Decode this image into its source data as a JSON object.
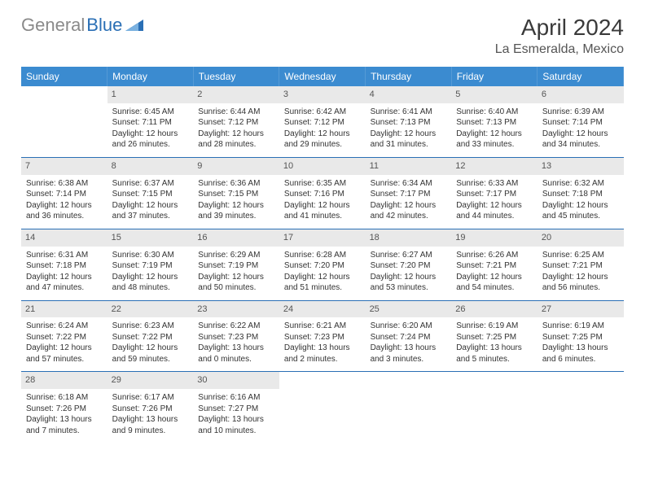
{
  "brand": {
    "part1": "General",
    "part2": "Blue"
  },
  "title": "April 2024",
  "location": "La Esmeralda, Mexico",
  "colors": {
    "header_bg": "#3b8bd0",
    "header_text": "#ffffff",
    "border": "#2a6fb5",
    "daynum_bg": "#e9e9e9",
    "logo_gray": "#8a8a8a",
    "logo_blue": "#2a6fb5"
  },
  "weekdays": [
    "Sunday",
    "Monday",
    "Tuesday",
    "Wednesday",
    "Thursday",
    "Friday",
    "Saturday"
  ],
  "weeks": [
    [
      {
        "day": "",
        "sunrise": "",
        "sunset": "",
        "daylight": ""
      },
      {
        "day": "1",
        "sunrise": "Sunrise: 6:45 AM",
        "sunset": "Sunset: 7:11 PM",
        "daylight": "Daylight: 12 hours and 26 minutes."
      },
      {
        "day": "2",
        "sunrise": "Sunrise: 6:44 AM",
        "sunset": "Sunset: 7:12 PM",
        "daylight": "Daylight: 12 hours and 28 minutes."
      },
      {
        "day": "3",
        "sunrise": "Sunrise: 6:42 AM",
        "sunset": "Sunset: 7:12 PM",
        "daylight": "Daylight: 12 hours and 29 minutes."
      },
      {
        "day": "4",
        "sunrise": "Sunrise: 6:41 AM",
        "sunset": "Sunset: 7:13 PM",
        "daylight": "Daylight: 12 hours and 31 minutes."
      },
      {
        "day": "5",
        "sunrise": "Sunrise: 6:40 AM",
        "sunset": "Sunset: 7:13 PM",
        "daylight": "Daylight: 12 hours and 33 minutes."
      },
      {
        "day": "6",
        "sunrise": "Sunrise: 6:39 AM",
        "sunset": "Sunset: 7:14 PM",
        "daylight": "Daylight: 12 hours and 34 minutes."
      }
    ],
    [
      {
        "day": "7",
        "sunrise": "Sunrise: 6:38 AM",
        "sunset": "Sunset: 7:14 PM",
        "daylight": "Daylight: 12 hours and 36 minutes."
      },
      {
        "day": "8",
        "sunrise": "Sunrise: 6:37 AM",
        "sunset": "Sunset: 7:15 PM",
        "daylight": "Daylight: 12 hours and 37 minutes."
      },
      {
        "day": "9",
        "sunrise": "Sunrise: 6:36 AM",
        "sunset": "Sunset: 7:15 PM",
        "daylight": "Daylight: 12 hours and 39 minutes."
      },
      {
        "day": "10",
        "sunrise": "Sunrise: 6:35 AM",
        "sunset": "Sunset: 7:16 PM",
        "daylight": "Daylight: 12 hours and 41 minutes."
      },
      {
        "day": "11",
        "sunrise": "Sunrise: 6:34 AM",
        "sunset": "Sunset: 7:17 PM",
        "daylight": "Daylight: 12 hours and 42 minutes."
      },
      {
        "day": "12",
        "sunrise": "Sunrise: 6:33 AM",
        "sunset": "Sunset: 7:17 PM",
        "daylight": "Daylight: 12 hours and 44 minutes."
      },
      {
        "day": "13",
        "sunrise": "Sunrise: 6:32 AM",
        "sunset": "Sunset: 7:18 PM",
        "daylight": "Daylight: 12 hours and 45 minutes."
      }
    ],
    [
      {
        "day": "14",
        "sunrise": "Sunrise: 6:31 AM",
        "sunset": "Sunset: 7:18 PM",
        "daylight": "Daylight: 12 hours and 47 minutes."
      },
      {
        "day": "15",
        "sunrise": "Sunrise: 6:30 AM",
        "sunset": "Sunset: 7:19 PM",
        "daylight": "Daylight: 12 hours and 48 minutes."
      },
      {
        "day": "16",
        "sunrise": "Sunrise: 6:29 AM",
        "sunset": "Sunset: 7:19 PM",
        "daylight": "Daylight: 12 hours and 50 minutes."
      },
      {
        "day": "17",
        "sunrise": "Sunrise: 6:28 AM",
        "sunset": "Sunset: 7:20 PM",
        "daylight": "Daylight: 12 hours and 51 minutes."
      },
      {
        "day": "18",
        "sunrise": "Sunrise: 6:27 AM",
        "sunset": "Sunset: 7:20 PM",
        "daylight": "Daylight: 12 hours and 53 minutes."
      },
      {
        "day": "19",
        "sunrise": "Sunrise: 6:26 AM",
        "sunset": "Sunset: 7:21 PM",
        "daylight": "Daylight: 12 hours and 54 minutes."
      },
      {
        "day": "20",
        "sunrise": "Sunrise: 6:25 AM",
        "sunset": "Sunset: 7:21 PM",
        "daylight": "Daylight: 12 hours and 56 minutes."
      }
    ],
    [
      {
        "day": "21",
        "sunrise": "Sunrise: 6:24 AM",
        "sunset": "Sunset: 7:22 PM",
        "daylight": "Daylight: 12 hours and 57 minutes."
      },
      {
        "day": "22",
        "sunrise": "Sunrise: 6:23 AM",
        "sunset": "Sunset: 7:22 PM",
        "daylight": "Daylight: 12 hours and 59 minutes."
      },
      {
        "day": "23",
        "sunrise": "Sunrise: 6:22 AM",
        "sunset": "Sunset: 7:23 PM",
        "daylight": "Daylight: 13 hours and 0 minutes."
      },
      {
        "day": "24",
        "sunrise": "Sunrise: 6:21 AM",
        "sunset": "Sunset: 7:23 PM",
        "daylight": "Daylight: 13 hours and 2 minutes."
      },
      {
        "day": "25",
        "sunrise": "Sunrise: 6:20 AM",
        "sunset": "Sunset: 7:24 PM",
        "daylight": "Daylight: 13 hours and 3 minutes."
      },
      {
        "day": "26",
        "sunrise": "Sunrise: 6:19 AM",
        "sunset": "Sunset: 7:25 PM",
        "daylight": "Daylight: 13 hours and 5 minutes."
      },
      {
        "day": "27",
        "sunrise": "Sunrise: 6:19 AM",
        "sunset": "Sunset: 7:25 PM",
        "daylight": "Daylight: 13 hours and 6 minutes."
      }
    ],
    [
      {
        "day": "28",
        "sunrise": "Sunrise: 6:18 AM",
        "sunset": "Sunset: 7:26 PM",
        "daylight": "Daylight: 13 hours and 7 minutes."
      },
      {
        "day": "29",
        "sunrise": "Sunrise: 6:17 AM",
        "sunset": "Sunset: 7:26 PM",
        "daylight": "Daylight: 13 hours and 9 minutes."
      },
      {
        "day": "30",
        "sunrise": "Sunrise: 6:16 AM",
        "sunset": "Sunset: 7:27 PM",
        "daylight": "Daylight: 13 hours and 10 minutes."
      },
      {
        "day": "",
        "sunrise": "",
        "sunset": "",
        "daylight": ""
      },
      {
        "day": "",
        "sunrise": "",
        "sunset": "",
        "daylight": ""
      },
      {
        "day": "",
        "sunrise": "",
        "sunset": "",
        "daylight": ""
      },
      {
        "day": "",
        "sunrise": "",
        "sunset": "",
        "daylight": ""
      }
    ]
  ]
}
